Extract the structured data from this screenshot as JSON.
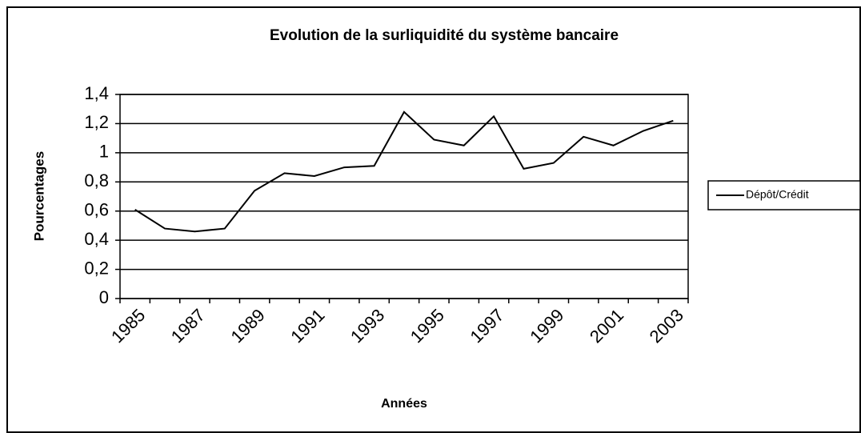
{
  "chart_data": {
    "type": "line",
    "title": "Evolution de la surliquidité du système bancaire",
    "x_label": "Années",
    "y_label": "Pourcentages",
    "categories": [
      "1985",
      null,
      "1987",
      null,
      "1989",
      null,
      "1991",
      null,
      "1993",
      null,
      "1995",
      null,
      "1997",
      null,
      "1999",
      null,
      "2001",
      null,
      "2003"
    ],
    "series": [
      {
        "name": "Dépôt/Crédit",
        "color": "#000000",
        "values": [
          0.61,
          0.48,
          0.46,
          0.48,
          0.74,
          0.86,
          0.84,
          0.9,
          0.91,
          1.28,
          1.09,
          1.05,
          1.25,
          0.89,
          0.93,
          1.11,
          1.05,
          1.15,
          1.22
        ]
      }
    ],
    "ylim": [
      0,
      1.4
    ],
    "yticks": [
      0,
      {
        "value": 0.2,
        "label": "0,2"
      },
      {
        "value": 0.4,
        "label": "0,4"
      },
      {
        "value": 0.6,
        "label": "0,6"
      },
      {
        "value": 0.8,
        "label": "0,8"
      },
      1,
      {
        "value": 1.2,
        "label": "1,2"
      },
      {
        "value": 1.4,
        "label": "1,4"
      }
    ],
    "grid": true,
    "legend": "right"
  }
}
